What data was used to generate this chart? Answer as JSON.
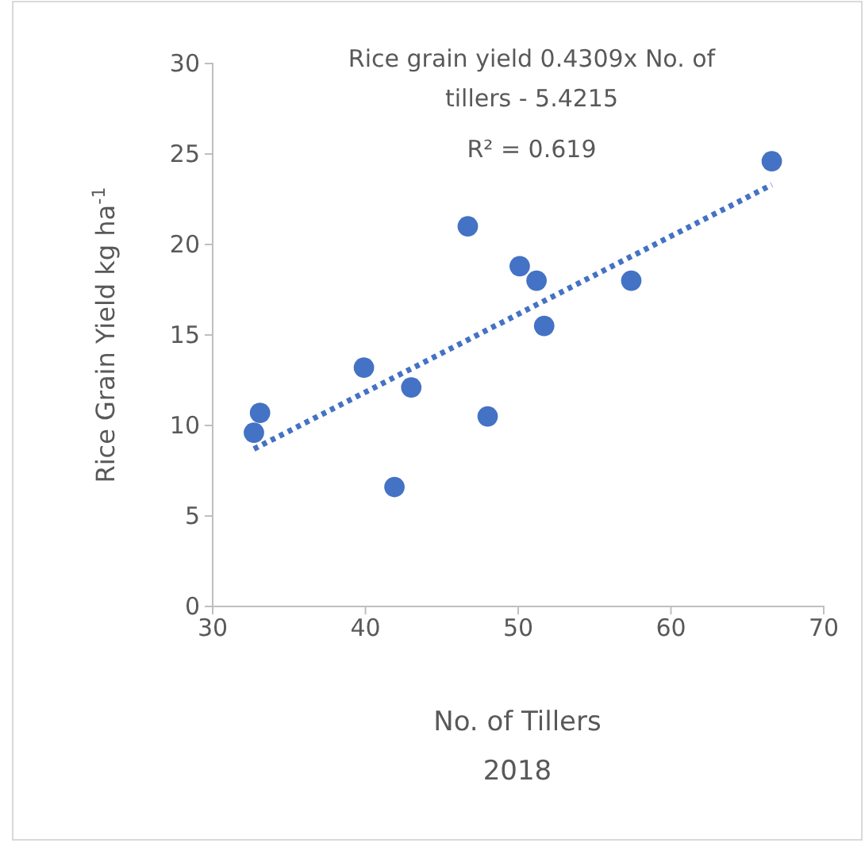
{
  "chart_data": {
    "type": "scatter",
    "xlabel": "No. of Tillers",
    "ylabel": "Rice Grain Yield kg ha$^{-1}$",
    "annotations": [
      "Rice grain yield 0.4309x  No. of tillers - 5.4215",
      "R² = 0.619",
      "2018"
    ],
    "series": [
      {
        "color": "#4472c4",
        "marker": "circle",
        "x": [
          33.1,
          32.7,
          39.9,
          43.0,
          41.9,
          46.7,
          48.0,
          50.1,
          51.2,
          51.7,
          57.4,
          66.6
        ],
        "values": [
          10.7,
          9.6,
          13.2,
          12.1,
          6.6,
          21.0,
          10.5,
          18.8,
          18.0,
          15.5,
          18.0,
          24.6
        ]
      },
      {
        "type": "line",
        "color": "#4472c4",
        "line_style": "dotted",
        "x": [
          32.7,
          66.6
        ],
        "values": [
          8.7,
          23.3
        ]
      }
    ],
    "xlim": [
      30,
      70
    ],
    "xticks": [
      30,
      40,
      50,
      60,
      70
    ],
    "ylim": [
      0,
      30
    ],
    "yticks": [
      0,
      5,
      10,
      15,
      20,
      25,
      30
    ],
    "grid": false
  }
}
